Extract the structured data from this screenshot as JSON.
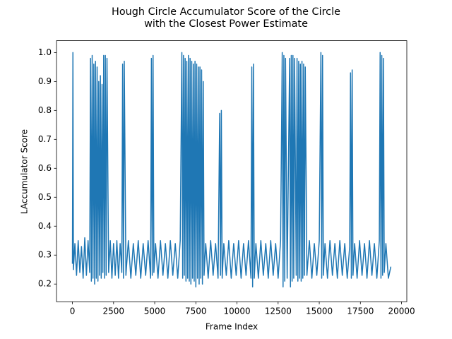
{
  "chart_data": {
    "type": "line",
    "title": [
      "Hough Circle Accumulator Score of the Circle",
      "with the Closest Power Estimate"
    ],
    "xlabel": "Frame Index",
    "ylabel": "LAccumulator Score",
    "color": "#1f77b4",
    "grid": false,
    "xlim": [
      -968,
      20320
    ],
    "ylim": [
      0.139,
      1.041
    ],
    "xticks": [
      0,
      2500,
      5000,
      7500,
      10000,
      12500,
      15000,
      17500,
      20000
    ],
    "yticks": [
      0.2,
      0.3,
      0.4,
      0.5,
      0.6,
      0.7,
      0.8,
      0.9,
      {
        "value": 1.0,
        "label": "1.0"
      }
    ],
    "x": [
      0,
      30,
      60,
      150,
      250,
      350,
      450,
      550,
      650,
      750,
      850,
      950,
      1050,
      1100,
      1150,
      1200,
      1250,
      1300,
      1350,
      1400,
      1450,
      1500,
      1550,
      1600,
      1650,
      1700,
      1750,
      1800,
      1850,
      1900,
      1950,
      2000,
      2050,
      2100,
      2200,
      2300,
      2400,
      2500,
      2600,
      2700,
      2800,
      2900,
      3000,
      3050,
      3100,
      3150,
      3250,
      3400,
      3550,
      3700,
      3850,
      4000,
      4150,
      4300,
      4450,
      4600,
      4750,
      4800,
      4850,
      4900,
      4950,
      5050,
      5200,
      5350,
      5500,
      5650,
      5800,
      5950,
      6100,
      6250,
      6400,
      6550,
      6650,
      6700,
      6750,
      6800,
      6850,
      6900,
      6950,
      7000,
      7050,
      7100,
      7150,
      7200,
      7250,
      7300,
      7350,
      7400,
      7450,
      7500,
      7550,
      7600,
      7650,
      7700,
      7750,
      7800,
      7850,
      7900,
      7950,
      8000,
      8100,
      8250,
      8400,
      8550,
      8700,
      8850,
      8950,
      9000,
      9050,
      9100,
      9200,
      9350,
      9500,
      9650,
      9800,
      9950,
      10100,
      10250,
      10400,
      10550,
      10700,
      10850,
      10900,
      10950,
      11000,
      11050,
      11150,
      11300,
      11450,
      11600,
      11750,
      11900,
      12050,
      12200,
      12350,
      12500,
      12650,
      12750,
      12800,
      12850,
      12900,
      12950,
      13050,
      13200,
      13250,
      13300,
      13350,
      13400,
      13450,
      13500,
      13600,
      13650,
      13700,
      13750,
      13800,
      13850,
      13900,
      13950,
      14000,
      14050,
      14100,
      14150,
      14250,
      14400,
      14550,
      14700,
      14850,
      15000,
      15100,
      15150,
      15200,
      15250,
      15350,
      15500,
      15650,
      15800,
      15950,
      16100,
      16250,
      16400,
      16550,
      16700,
      16850,
      16900,
      16950,
      17000,
      17050,
      17150,
      17300,
      17450,
      17600,
      17750,
      17900,
      18050,
      18200,
      18350,
      18500,
      18650,
      18700,
      18750,
      18800,
      18850,
      18900,
      18950,
      19050,
      19200,
      19350
    ],
    "values": [
      0.27,
      1.0,
      0.25,
      0.34,
      0.23,
      0.35,
      0.24,
      0.33,
      0.22,
      0.36,
      0.23,
      0.35,
      0.24,
      0.98,
      0.21,
      0.99,
      0.22,
      0.96,
      0.2,
      0.97,
      0.22,
      0.95,
      0.21,
      0.9,
      0.23,
      0.92,
      0.22,
      0.89,
      0.24,
      0.99,
      0.22,
      0.99,
      0.23,
      0.98,
      0.24,
      0.35,
      0.22,
      0.34,
      0.23,
      0.35,
      0.22,
      0.34,
      0.24,
      0.96,
      0.22,
      0.97,
      0.23,
      0.35,
      0.22,
      0.34,
      0.23,
      0.35,
      0.22,
      0.34,
      0.23,
      0.35,
      0.22,
      0.98,
      0.23,
      0.99,
      0.24,
      0.34,
      0.22,
      0.35,
      0.23,
      0.34,
      0.22,
      0.35,
      0.23,
      0.34,
      0.22,
      0.35,
      1.0,
      0.22,
      0.99,
      0.23,
      0.98,
      0.21,
      0.97,
      0.22,
      0.99,
      0.21,
      0.98,
      0.2,
      0.97,
      0.22,
      0.96,
      0.21,
      0.97,
      0.19,
      0.96,
      0.22,
      0.95,
      0.2,
      0.95,
      0.22,
      0.94,
      0.2,
      0.9,
      0.23,
      0.34,
      0.22,
      0.35,
      0.23,
      0.34,
      0.22,
      0.79,
      0.23,
      0.8,
      0.22,
      0.34,
      0.23,
      0.35,
      0.22,
      0.34,
      0.23,
      0.35,
      0.22,
      0.34,
      0.23,
      0.35,
      0.22,
      0.95,
      0.19,
      0.96,
      0.22,
      0.34,
      0.22,
      0.35,
      0.23,
      0.34,
      0.22,
      0.35,
      0.23,
      0.34,
      0.22,
      0.35,
      1.0,
      0.19,
      0.99,
      0.21,
      0.98,
      0.22,
      0.98,
      0.19,
      0.99,
      0.21,
      0.99,
      0.22,
      0.98,
      0.23,
      0.98,
      0.21,
      0.97,
      0.22,
      0.96,
      0.21,
      0.97,
      0.22,
      0.96,
      0.23,
      0.95,
      0.23,
      0.35,
      0.22,
      0.34,
      0.23,
      0.35,
      1.0,
      0.22,
      0.99,
      0.23,
      0.34,
      0.22,
      0.35,
      0.23,
      0.34,
      0.22,
      0.35,
      0.23,
      0.34,
      0.22,
      0.33,
      0.93,
      0.22,
      0.94,
      0.23,
      0.34,
      0.22,
      0.35,
      0.23,
      0.34,
      0.22,
      0.35,
      0.23,
      0.34,
      0.22,
      0.35,
      1.0,
      0.22,
      0.99,
      0.23,
      0.98,
      0.24,
      0.34,
      0.22,
      0.26
    ]
  }
}
